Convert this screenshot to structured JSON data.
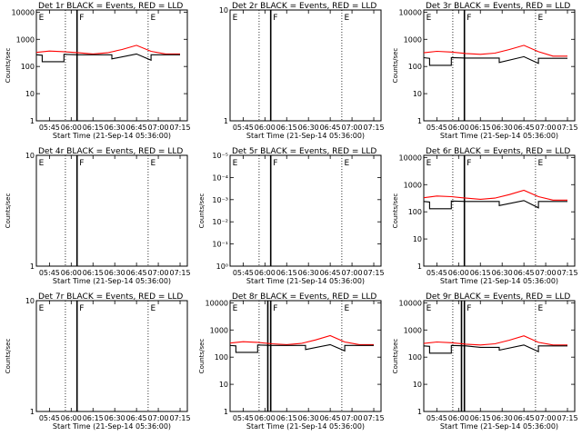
{
  "colors": {
    "events": "#000000",
    "lld": "#ff0000",
    "axes": "#000000",
    "background": "#ffffff"
  },
  "chart_data": [
    {
      "type": "line",
      "title": "Det 1r BLACK = Events, RED = LLD",
      "xlabel": "Start Time (21-Sep-14 05:36:00)",
      "ylabel": "Counts/sec",
      "x_ticks": [
        "05:45",
        "06:00",
        "06:15",
        "06:30",
        "06:45",
        "07:00",
        "07:15"
      ],
      "xlim": [
        "05:36",
        "07:20"
      ],
      "y_scale": "log",
      "y_ticks": [
        "1",
        "10",
        "100",
        "1000",
        "10000"
      ],
      "ylim": [
        1,
        12000
      ],
      "vlines_dotted": [
        "05:56",
        "06:53"
      ],
      "vlines_solid": [
        "06:04"
      ],
      "markers": [
        {
          "label": "E",
          "x": "05:37"
        },
        {
          "label": "F",
          "x": "06:05"
        },
        {
          "label": "E",
          "x": "06:54"
        }
      ],
      "series": [
        {
          "color": "red",
          "x": [
            "05:36",
            "05:45",
            "05:55",
            "06:05",
            "06:15",
            "06:25",
            "06:35",
            "06:45",
            "06:55",
            "07:05",
            "07:15"
          ],
          "y": [
            330,
            370,
            350,
            320,
            290,
            320,
            420,
            600,
            360,
            290,
            290
          ]
        },
        {
          "color": "black",
          "x": [
            "05:36",
            "05:40",
            "05:40",
            "05:55",
            "05:55",
            "06:05",
            "06:15",
            "06:28",
            "06:28",
            "06:45",
            "06:55",
            "06:55",
            "07:05",
            "07:15"
          ],
          "y": [
            270,
            260,
            150,
            150,
            280,
            270,
            270,
            270,
            190,
            290,
            170,
            270,
            270,
            270
          ]
        }
      ]
    },
    {
      "type": "line",
      "title": "Det 2r BLACK = Events, RED = LLD",
      "xlabel": "Start Time (21-Sep-14 05:36:00)",
      "ylabel": "",
      "x_ticks": [
        "05:45",
        "06:00",
        "06:15",
        "06:30",
        "06:45",
        "07:00",
        "07:15"
      ],
      "xlim": [
        "05:36",
        "07:20"
      ],
      "y_scale": "log",
      "y_ticks": [
        "1",
        "10"
      ],
      "ylim": [
        1,
        10
      ],
      "vlines_dotted": [
        "05:56",
        "06:53"
      ],
      "vlines_solid": [
        "06:04"
      ],
      "markers": [
        {
          "label": "E",
          "x": "05:37"
        },
        {
          "label": "F",
          "x": "06:05"
        },
        {
          "label": "E",
          "x": "06:54"
        }
      ],
      "series": []
    },
    {
      "type": "line",
      "title": "Det 3r BLACK = Events, RED = LLD",
      "xlabel": "Start Time (21-Sep-14 05:36:00)",
      "ylabel": "Counts/sec",
      "x_ticks": [
        "05:45",
        "06:00",
        "06:15",
        "06:30",
        "06:45",
        "07:00",
        "07:15"
      ],
      "xlim": [
        "05:36",
        "07:20"
      ],
      "y_scale": "log",
      "y_ticks": [
        "1",
        "10",
        "100",
        "1000",
        "10000"
      ],
      "ylim": [
        1,
        12000
      ],
      "vlines_dotted": [
        "05:56",
        "06:53"
      ],
      "vlines_solid": [
        "06:04"
      ],
      "markers": [
        {
          "label": "E",
          "x": "05:37"
        },
        {
          "label": "F",
          "x": "06:05"
        },
        {
          "label": "E",
          "x": "06:54"
        }
      ],
      "series": [
        {
          "color": "red",
          "x": [
            "05:36",
            "05:45",
            "05:55",
            "06:05",
            "06:15",
            "06:25",
            "06:35",
            "06:45",
            "06:55",
            "07:05",
            "07:15"
          ],
          "y": [
            320,
            360,
            340,
            300,
            280,
            310,
            420,
            600,
            350,
            240,
            240
          ]
        },
        {
          "color": "black",
          "x": [
            "05:36",
            "05:40",
            "05:40",
            "05:55",
            "05:55",
            "06:05",
            "06:15",
            "06:28",
            "06:28",
            "06:45",
            "06:55",
            "06:55",
            "07:05",
            "07:15"
          ],
          "y": [
            210,
            200,
            110,
            110,
            210,
            205,
            205,
            205,
            140,
            230,
            130,
            200,
            200,
            200
          ]
        }
      ]
    },
    {
      "type": "line",
      "title": "Det 4r BLACK = Events, RED = LLD",
      "xlabel": "Start Time (21-Sep-14 05:36:00)",
      "ylabel": "Counts/sec",
      "x_ticks": [
        "05:45",
        "06:00",
        "06:15",
        "06:30",
        "06:45",
        "07:00",
        "07:15"
      ],
      "xlim": [
        "05:36",
        "07:20"
      ],
      "y_scale": "log",
      "y_ticks": [
        "1",
        "10"
      ],
      "ylim": [
        1,
        10
      ],
      "vlines_dotted": [
        "05:56",
        "06:53"
      ],
      "vlines_solid": [
        "06:04"
      ],
      "markers": [
        {
          "label": "E",
          "x": "05:37"
        },
        {
          "label": "F",
          "x": "06:05"
        },
        {
          "label": "E",
          "x": "06:54"
        }
      ],
      "series": []
    },
    {
      "type": "line",
      "title": "Det 5r BLACK = Events, RED = LLD",
      "xlabel": "Start Time (21-Sep-14 05:36:00)",
      "ylabel": "Counts/sec",
      "x_ticks": [
        "05:45",
        "06:00",
        "06:15",
        "06:30",
        "06:45",
        "07:00",
        "07:15"
      ],
      "xlim": [
        "05:36",
        "07:20"
      ],
      "y_scale": "log",
      "y_ticks": [
        "10⁰",
        "10⁻¹",
        "10⁻²",
        "10⁻³",
        "10⁻⁴",
        "10⁻⁵"
      ],
      "y_tick_exponents": [
        0,
        -1,
        -2,
        -3,
        -4,
        -5
      ],
      "y_inverted": true,
      "vlines_dotted": [
        "05:56",
        "06:53"
      ],
      "vlines_solid": [
        "06:04"
      ],
      "markers": [
        {
          "label": "E",
          "x": "05:37"
        },
        {
          "label": "F",
          "x": "06:05"
        },
        {
          "label": "E",
          "x": "06:54"
        }
      ],
      "series": []
    },
    {
      "type": "line",
      "title": "Det 6r BLACK = Events, RED = LLD",
      "xlabel": "Start Time (21-Sep-14 05:36:00)",
      "ylabel": "Counts/sec",
      "x_ticks": [
        "05:45",
        "06:00",
        "06:15",
        "06:30",
        "06:45",
        "07:00",
        "07:15"
      ],
      "xlim": [
        "05:36",
        "07:20"
      ],
      "y_scale": "log",
      "y_ticks": [
        "1",
        "10",
        "100",
        "1000",
        "10000"
      ],
      "ylim": [
        1,
        12000
      ],
      "vlines_dotted": [
        "05:56",
        "06:53"
      ],
      "vlines_solid": [
        "06:04"
      ],
      "markers": [
        {
          "label": "E",
          "x": "05:37"
        },
        {
          "label": "F",
          "x": "06:05"
        },
        {
          "label": "E",
          "x": "06:54"
        }
      ],
      "series": [
        {
          "color": "red",
          "x": [
            "05:36",
            "05:45",
            "05:55",
            "06:05",
            "06:15",
            "06:25",
            "06:35",
            "06:45",
            "06:55",
            "07:05",
            "07:15"
          ],
          "y": [
            330,
            380,
            360,
            320,
            290,
            320,
            430,
            620,
            360,
            270,
            270
          ]
        },
        {
          "color": "black",
          "x": [
            "05:36",
            "05:40",
            "05:40",
            "05:55",
            "05:55",
            "06:05",
            "06:15",
            "06:28",
            "06:28",
            "06:45",
            "06:55",
            "06:55",
            "07:05",
            "07:15"
          ],
          "y": [
            240,
            230,
            130,
            130,
            250,
            240,
            240,
            240,
            170,
            260,
            140,
            240,
            240,
            240
          ]
        }
      ]
    },
    {
      "type": "line",
      "title": "Det 7r BLACK = Events, RED = LLD",
      "xlabel": "Start Time (21-Sep-14 05:36:00)",
      "ylabel": "Counts/sec",
      "x_ticks": [
        "05:45",
        "06:00",
        "06:15",
        "06:30",
        "06:45",
        "07:00",
        "07:15"
      ],
      "xlim": [
        "05:36",
        "07:20"
      ],
      "y_scale": "log",
      "y_ticks": [
        "1",
        "10"
      ],
      "ylim": [
        1,
        10
      ],
      "vlines_dotted": [
        "05:56",
        "06:53"
      ],
      "vlines_solid": [
        "06:04"
      ],
      "markers": [
        {
          "label": "E",
          "x": "05:37"
        },
        {
          "label": "F",
          "x": "06:05"
        },
        {
          "label": "E",
          "x": "06:54"
        }
      ],
      "series": []
    },
    {
      "type": "line",
      "title": "Det 8r BLACK = Events, RED = LLD",
      "xlabel": "Start Time (21-Sep-14 05:36:00)",
      "ylabel": "Counts/sec",
      "x_ticks": [
        "05:45",
        "06:00",
        "06:15",
        "06:30",
        "06:45",
        "07:00",
        "07:15"
      ],
      "xlim": [
        "05:36",
        "07:20"
      ],
      "y_scale": "log",
      "y_ticks": [
        "1",
        "10",
        "100",
        "1000",
        "10000"
      ],
      "ylim": [
        1,
        12000
      ],
      "vlines_dotted": [
        "05:56",
        "06:53"
      ],
      "vlines_solid": [
        "06:02",
        "06:04"
      ],
      "markers": [
        {
          "label": "E",
          "x": "05:37"
        },
        {
          "label": "F",
          "x": "06:05"
        },
        {
          "label": "E",
          "x": "06:54"
        }
      ],
      "series": [
        {
          "color": "red",
          "x": [
            "05:36",
            "05:45",
            "05:55",
            "06:05",
            "06:15",
            "06:25",
            "06:35",
            "06:45",
            "06:55",
            "07:05",
            "07:15"
          ],
          "y": [
            330,
            370,
            350,
            310,
            290,
            320,
            430,
            620,
            360,
            290,
            290
          ]
        },
        {
          "color": "black",
          "x": [
            "05:36",
            "05:40",
            "05:40",
            "05:55",
            "05:55",
            "06:05",
            "06:15",
            "06:28",
            "06:28",
            "06:45",
            "06:55",
            "06:55",
            "07:05",
            "07:15"
          ],
          "y": [
            270,
            260,
            150,
            150,
            280,
            270,
            270,
            270,
            190,
            290,
            170,
            270,
            270,
            270
          ]
        }
      ]
    },
    {
      "type": "line",
      "title": "Det 9r BLACK = Events, RED = LLD",
      "xlabel": "Start Time (21-Sep-14 05:36:00)",
      "ylabel": "Counts/sec",
      "x_ticks": [
        "05:45",
        "06:00",
        "06:15",
        "06:30",
        "06:45",
        "07:00",
        "07:15"
      ],
      "xlim": [
        "05:36",
        "07:20"
      ],
      "y_scale": "log",
      "y_ticks": [
        "1",
        "10",
        "100",
        "1000",
        "10000"
      ],
      "ylim": [
        1,
        12000
      ],
      "vlines_dotted": [
        "05:56",
        "06:53"
      ],
      "vlines_solid": [
        "06:02",
        "06:04"
      ],
      "markers": [
        {
          "label": "E",
          "x": "05:37"
        },
        {
          "label": "F",
          "x": "06:05"
        },
        {
          "label": "E",
          "x": "06:54"
        }
      ],
      "series": [
        {
          "color": "red",
          "x": [
            "05:36",
            "05:45",
            "05:55",
            "06:05",
            "06:15",
            "06:25",
            "06:35",
            "06:45",
            "06:55",
            "07:05",
            "07:15"
          ],
          "y": [
            320,
            360,
            340,
            300,
            280,
            310,
            420,
            610,
            350,
            280,
            280
          ]
        },
        {
          "color": "black",
          "x": [
            "05:36",
            "05:40",
            "05:40",
            "05:55",
            "05:55",
            "06:05",
            "06:15",
            "06:28",
            "06:28",
            "06:45",
            "06:55",
            "06:55",
            "07:05",
            "07:15"
          ],
          "y": [
            260,
            250,
            140,
            140,
            270,
            260,
            230,
            230,
            180,
            280,
            160,
            260,
            260,
            260
          ]
        }
      ]
    }
  ]
}
